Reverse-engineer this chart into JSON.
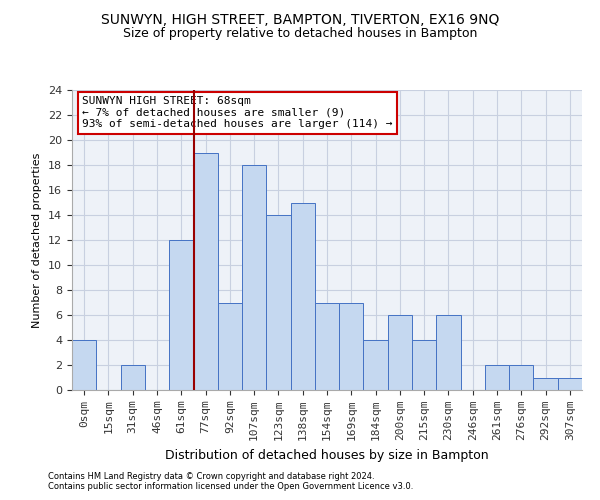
{
  "title1": "SUNWYN, HIGH STREET, BAMPTON, TIVERTON, EX16 9NQ",
  "title2": "Size of property relative to detached houses in Bampton",
  "xlabel": "Distribution of detached houses by size in Bampton",
  "ylabel": "Number of detached properties",
  "footer1": "Contains HM Land Registry data © Crown copyright and database right 2024.",
  "footer2": "Contains public sector information licensed under the Open Government Licence v3.0.",
  "bin_labels": [
    "0sqm",
    "15sqm",
    "31sqm",
    "46sqm",
    "61sqm",
    "77sqm",
    "92sqm",
    "107sqm",
    "123sqm",
    "138sqm",
    "154sqm",
    "169sqm",
    "184sqm",
    "200sqm",
    "215sqm",
    "230sqm",
    "246sqm",
    "261sqm",
    "276sqm",
    "292sqm",
    "307sqm"
  ],
  "bar_heights": [
    4,
    0,
    2,
    0,
    12,
    19,
    7,
    18,
    14,
    15,
    7,
    7,
    4,
    6,
    4,
    6,
    0,
    2,
    2,
    1,
    1
  ],
  "bar_color": "#c5d8f0",
  "bar_edge_color": "#4472c4",
  "vline_x": 4.53,
  "vline_color": "#990000",
  "annotation_text": "SUNWYN HIGH STREET: 68sqm\n← 7% of detached houses are smaller (9)\n93% of semi-detached houses are larger (114) →",
  "annotation_box_color": "#ffffff",
  "annotation_box_edge": "#cc0000",
  "ylim": [
    0,
    24
  ],
  "yticks": [
    0,
    2,
    4,
    6,
    8,
    10,
    12,
    14,
    16,
    18,
    20,
    22,
    24
  ],
  "grid_color": "#c8d0e0",
  "bg_color": "#eef2f8",
  "title1_fontsize": 10,
  "title2_fontsize": 9
}
